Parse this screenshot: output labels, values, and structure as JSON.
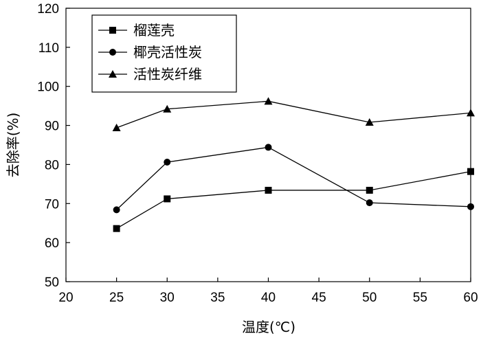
{
  "chart_data": {
    "type": "line",
    "title": "",
    "xlabel": "温度(℃)",
    "ylabel": "去除率(%)",
    "xlim": [
      20,
      60
    ],
    "ylim": [
      50,
      120
    ],
    "xticks": [
      20,
      25,
      30,
      35,
      40,
      45,
      50,
      55,
      60
    ],
    "yticks": [
      50,
      60,
      70,
      80,
      90,
      100,
      110,
      120
    ],
    "grid": false,
    "legend_position": "top-left",
    "x": [
      25,
      30,
      40,
      50,
      60
    ],
    "series": [
      {
        "name": "榴莲壳",
        "marker": "square",
        "color": "#000000",
        "values": [
          63.6,
          71.2,
          73.4,
          73.4,
          78.2
        ]
      },
      {
        "name": "椰壳活性炭",
        "marker": "circle",
        "color": "#000000",
        "values": [
          68.4,
          80.6,
          84.4,
          70.2,
          69.2
        ]
      },
      {
        "name": "活性炭纤维",
        "marker": "triangle",
        "color": "#000000",
        "values": [
          89.4,
          94.2,
          96.2,
          90.8,
          93.2
        ]
      }
    ]
  }
}
